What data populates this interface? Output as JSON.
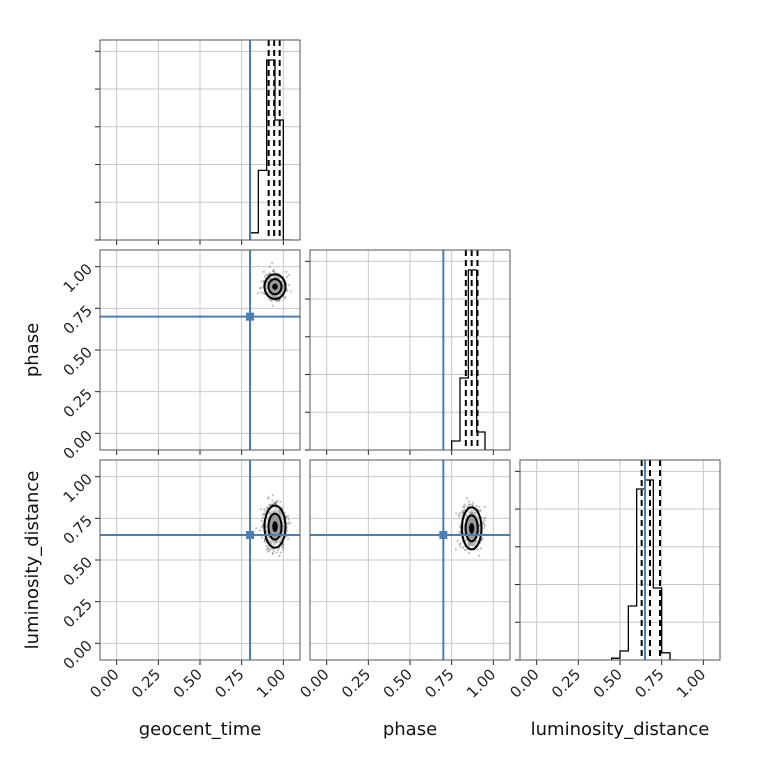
{
  "chart_data": {
    "type": "corner",
    "parameters": [
      "geocent_time",
      "phase",
      "luminosity_distance"
    ],
    "axis_range": [
      -0.1,
      1.1
    ],
    "tick_values": [
      0.0,
      0.25,
      0.5,
      0.75,
      1.0
    ],
    "tick_labels": [
      "0.00",
      "0.25",
      "0.50",
      "0.75",
      "1.00"
    ],
    "truths": {
      "geocent_time": 0.8,
      "phase": 0.7,
      "luminosity_distance": 0.65
    },
    "truth_color": "#4a7fb5",
    "hist_color": "#000000",
    "grid": true,
    "diagonals": [
      {
        "name": "geocent_time",
        "bin_edges": [
          0.8,
          0.85,
          0.9,
          0.95,
          1.0,
          1.05
        ],
        "counts": [
          0.06,
          0.58,
          1.5,
          1.0,
          0.0
        ],
        "quantiles": [
          0.912,
          0.945,
          0.978
        ]
      },
      {
        "name": "phase",
        "bin_edges": [
          0.75,
          0.8,
          0.85,
          0.9,
          0.95,
          1.0
        ],
        "counts": [
          0.05,
          0.4,
          1.0,
          0.1,
          0.0
        ],
        "quantiles": [
          0.835,
          0.87,
          0.905
        ]
      },
      {
        "name": "luminosity_distance",
        "bin_edges": [
          0.45,
          0.5,
          0.55,
          0.6,
          0.65,
          0.7,
          0.75,
          0.8,
          0.85
        ],
        "counts": [
          0.01,
          0.05,
          0.3,
          0.95,
          1.0,
          0.4,
          0.04,
          0.0
        ],
        "quantiles": [
          0.63,
          0.68,
          0.74
        ]
      }
    ],
    "scatter_panels": [
      {
        "x": "geocent_time",
        "y": "phase",
        "cx": 0.95,
        "cy": 0.88,
        "sx": 0.03,
        "sy": 0.035
      },
      {
        "x": "geocent_time",
        "y": "luminosity_distance",
        "cx": 0.95,
        "cy": 0.7,
        "sx": 0.03,
        "sy": 0.06
      },
      {
        "x": "phase",
        "y": "luminosity_distance",
        "cx": 0.87,
        "cy": 0.69,
        "sx": 0.028,
        "sy": 0.06
      }
    ]
  }
}
